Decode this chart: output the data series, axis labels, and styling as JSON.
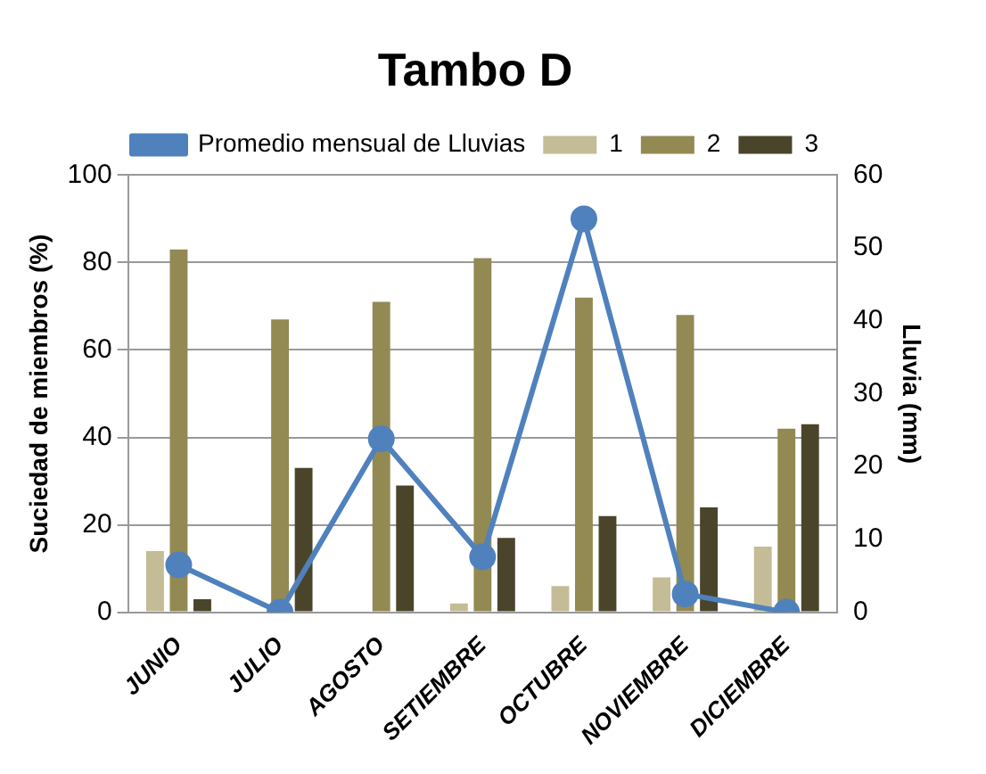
{
  "chart_data": {
    "type": "bar",
    "title": "Tambo D",
    "ylabel": "Suciedad de miembros (%)",
    "y2label": "Lluvia (mm)",
    "categories": [
      "JUNIO",
      "JULIO",
      "AGOSTO",
      "SETIEMBRE",
      "OCTUBRE",
      "NOVIEMBRE",
      "DICIEMBRE"
    ],
    "series": [
      {
        "name": "1",
        "color": "#c4bc96",
        "values": [
          14,
          0,
          0,
          2,
          6,
          8,
          15
        ]
      },
      {
        "name": "2",
        "color": "#938953",
        "values": [
          83,
          67,
          71,
          81,
          72,
          68,
          42
        ]
      },
      {
        "name": "3",
        "color": "#4a452a",
        "values": [
          3,
          33,
          29,
          17,
          22,
          24,
          43
        ]
      },
      {
        "name": "Promedio mensual de Lluvias",
        "type": "line",
        "axis": "y2",
        "color": "#4f81bd",
        "values": [
          6.5,
          0,
          23.8,
          7.6,
          54,
          2.5,
          0
        ]
      }
    ],
    "ylim": [
      0,
      100
    ],
    "yticks": [
      0,
      20,
      40,
      60,
      80,
      100
    ],
    "y2lim": [
      0,
      60
    ],
    "y2ticks": [
      0,
      10,
      20,
      30,
      40,
      50,
      60
    ],
    "grid": "y",
    "legend": "top",
    "marker": "circle"
  }
}
